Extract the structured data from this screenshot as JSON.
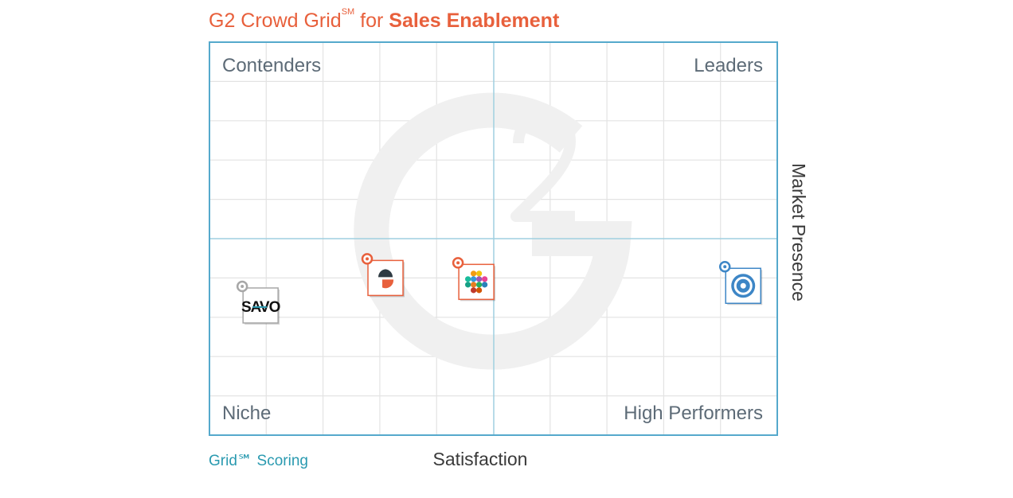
{
  "header": {
    "title_prefix": "G2 Crowd Grid",
    "title_sm": "SM",
    "title_for": " for ",
    "title_category": "Sales Enablement"
  },
  "colors": {
    "accent": "#e8603c",
    "frame": "#55a9cc",
    "gridline": "#e3e3e3",
    "quadrant_text": "#5d6b77",
    "watermark": "#f1f1f1"
  },
  "chart_data": {
    "type": "scatter",
    "title": "G2 Crowd Grid℠ for Sales Enablement",
    "xlabel": "Satisfaction",
    "ylabel": "Market Presence",
    "xlim": [
      0,
      100
    ],
    "ylim": [
      0,
      100
    ],
    "grid": true,
    "quadrants": {
      "top_left": "Contenders",
      "top_right": "Leaders",
      "bottom_left": "Niche",
      "bottom_right": "High Performers"
    },
    "footer_left": "Grid℠ Scoring",
    "points": [
      {
        "name": "SAVO",
        "label_text": "SAVO",
        "x": 9,
        "y": 33,
        "marker_color": "#a7a7a7"
      },
      {
        "name": "Seismic",
        "label_text": "",
        "x": 31,
        "y": 40,
        "marker_color": "#e8603c"
      },
      {
        "name": "Highspot",
        "label_text": "",
        "x": 47,
        "y": 39,
        "marker_color": "#e8603c"
      },
      {
        "name": "Showpad",
        "label_text": "",
        "x": 94,
        "y": 38,
        "marker_color": "#3d86c6"
      }
    ]
  }
}
